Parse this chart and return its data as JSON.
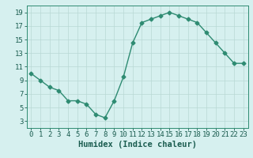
{
  "x": [
    0,
    1,
    2,
    3,
    4,
    5,
    6,
    7,
    8,
    9,
    10,
    11,
    12,
    13,
    14,
    15,
    16,
    17,
    18,
    19,
    20,
    21,
    22,
    23
  ],
  "y": [
    10.0,
    9.0,
    8.0,
    7.5,
    6.0,
    6.0,
    5.5,
    4.0,
    3.5,
    6.0,
    9.5,
    14.5,
    17.5,
    18.0,
    18.5,
    19.0,
    18.5,
    18.0,
    17.5,
    16.0,
    14.5,
    13.0,
    11.5,
    11.5
  ],
  "line_color": "#2e8b72",
  "marker": "D",
  "marker_size": 2.5,
  "bg_color": "#d6f0ef",
  "grid_color": "#b8d8d4",
  "xlabel": "Humidex (Indice chaleur)",
  "xlabel_fontsize": 7.5,
  "xlim": [
    -0.5,
    23.5
  ],
  "ylim": [
    2,
    20
  ],
  "yticks": [
    3,
    5,
    7,
    9,
    11,
    13,
    15,
    17,
    19
  ],
  "xticks": [
    0,
    1,
    2,
    3,
    4,
    5,
    6,
    7,
    8,
    9,
    10,
    11,
    12,
    13,
    14,
    15,
    16,
    17,
    18,
    19,
    20,
    21,
    22,
    23
  ],
  "tick_fontsize": 6.5,
  "line_width": 1.0
}
